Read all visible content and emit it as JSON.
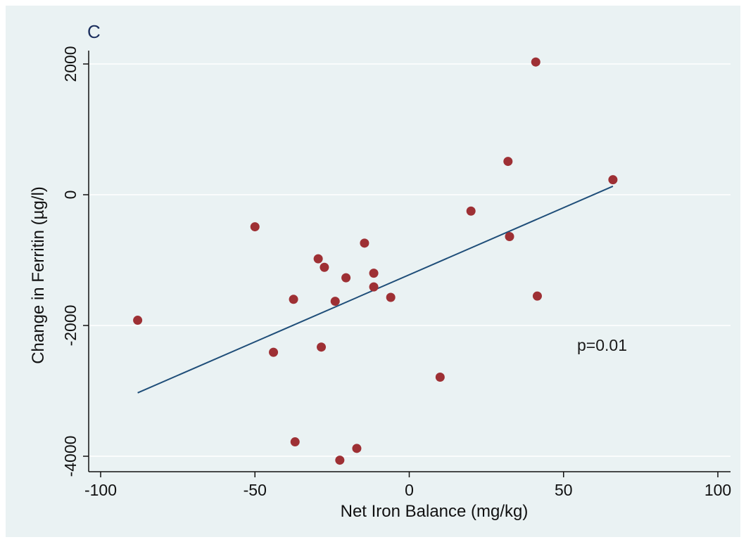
{
  "chart_data": {
    "type": "scatter",
    "panel_label": "C",
    "xlabel": "Net Iron Balance (mg/kg)",
    "ylabel": "Change in Ferritin (µg/l)",
    "xlim": [
      -100,
      100
    ],
    "ylim": [
      -4000,
      2000
    ],
    "x_ticks": [
      -100,
      -50,
      0,
      50,
      100
    ],
    "y_ticks": [
      -4000,
      -2000,
      0,
      2000
    ],
    "grid": "horizontal",
    "points": [
      {
        "x": -88,
        "y": -1920
      },
      {
        "x": -50,
        "y": -490
      },
      {
        "x": -44,
        "y": -2410
      },
      {
        "x": -37.5,
        "y": -1600
      },
      {
        "x": -37,
        "y": -3780
      },
      {
        "x": -29.5,
        "y": -980
      },
      {
        "x": -28.5,
        "y": -2330
      },
      {
        "x": -27.5,
        "y": -1110
      },
      {
        "x": -24,
        "y": -1630
      },
      {
        "x": -22.5,
        "y": -4060
      },
      {
        "x": -20.5,
        "y": -1270
      },
      {
        "x": -17,
        "y": -3880
      },
      {
        "x": -14.5,
        "y": -740
      },
      {
        "x": -11.5,
        "y": -1200
      },
      {
        "x": -11.5,
        "y": -1410
      },
      {
        "x": -6,
        "y": -1570
      },
      {
        "x": 10,
        "y": -2790
      },
      {
        "x": 20,
        "y": -250
      },
      {
        "x": 32,
        "y": 510
      },
      {
        "x": 32.5,
        "y": -640
      },
      {
        "x": 41,
        "y": 2030
      },
      {
        "x": 41.5,
        "y": -1550
      },
      {
        "x": 66,
        "y": 230
      }
    ],
    "fit_line": {
      "x": [
        -88,
        66
      ],
      "y": [
        -3030,
        130
      ]
    },
    "annotation": "p=0.01",
    "colors": {
      "points": "#9e3034",
      "fit_line": "#1f4e79",
      "background": "#eaf2f3",
      "gridlines": "#ffffff",
      "plot_area": "#eaf2f3"
    }
  }
}
